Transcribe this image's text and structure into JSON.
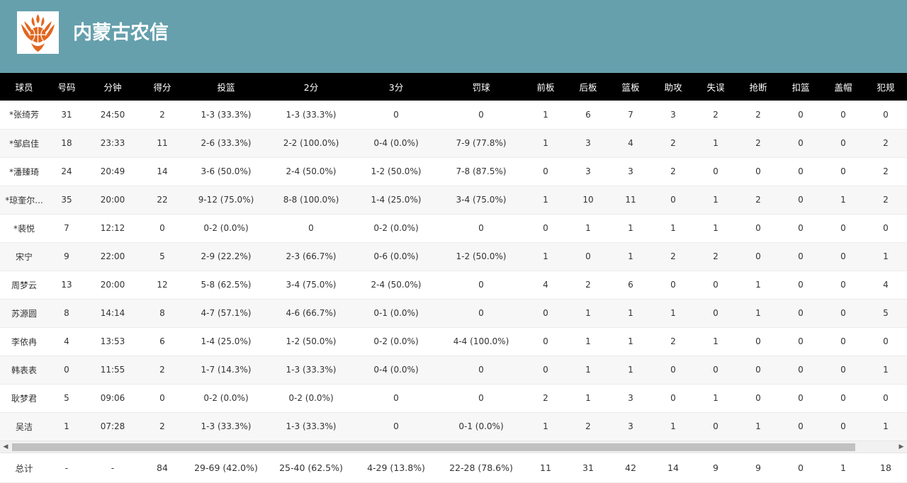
{
  "team": {
    "name": "内蒙古农信",
    "logo_icon": "phoenix-basketball-logo-icon",
    "header_color": "#66a0ad",
    "logo_color": "#e2661f"
  },
  "table": {
    "headers": [
      "球员",
      "号码",
      "分钟",
      "得分",
      "投篮",
      "2分",
      "3分",
      "罚球",
      "前板",
      "后板",
      "篮板",
      "助攻",
      "失误",
      "抢断",
      "扣篮",
      "盖帽",
      "犯规"
    ],
    "rows": [
      [
        "*张绮芳",
        "31",
        "24:50",
        "2",
        "1-3 (33.3%)",
        "1-3 (33.3%)",
        "0",
        "0",
        "1",
        "6",
        "7",
        "3",
        "2",
        "2",
        "0",
        "0",
        "0"
      ],
      [
        "*邹启佳",
        "18",
        "23:33",
        "11",
        "2-6 (33.3%)",
        "2-2 (100.0%)",
        "0-4 (0.0%)",
        "7-9 (77.8%)",
        "1",
        "3",
        "4",
        "2",
        "1",
        "2",
        "0",
        "0",
        "2"
      ],
      [
        "*潘臻琦",
        "24",
        "20:49",
        "14",
        "3-6 (50.0%)",
        "2-4 (50.0%)",
        "1-2 (50.0%)",
        "7-8 (87.5%)",
        "0",
        "3",
        "3",
        "2",
        "0",
        "0",
        "0",
        "0",
        "2"
      ],
      [
        "*琼奎尔...",
        "35",
        "20:00",
        "22",
        "9-12 (75.0%)",
        "8-8 (100.0%)",
        "1-4 (25.0%)",
        "3-4 (75.0%)",
        "1",
        "10",
        "11",
        "0",
        "1",
        "2",
        "0",
        "1",
        "2"
      ],
      [
        "*裴悦",
        "7",
        "12:12",
        "0",
        "0-2 (0.0%)",
        "0",
        "0-2 (0.0%)",
        "0",
        "0",
        "1",
        "1",
        "1",
        "1",
        "0",
        "0",
        "0",
        "0"
      ],
      [
        "宋宁",
        "9",
        "22:00",
        "5",
        "2-9 (22.2%)",
        "2-3 (66.7%)",
        "0-6 (0.0%)",
        "1-2 (50.0%)",
        "1",
        "0",
        "1",
        "2",
        "2",
        "0",
        "0",
        "0",
        "1"
      ],
      [
        "周梦云",
        "13",
        "20:00",
        "12",
        "5-8 (62.5%)",
        "3-4 (75.0%)",
        "2-4 (50.0%)",
        "0",
        "4",
        "2",
        "6",
        "0",
        "0",
        "1",
        "0",
        "0",
        "4"
      ],
      [
        "苏源圆",
        "8",
        "14:14",
        "8",
        "4-7 (57.1%)",
        "4-6 (66.7%)",
        "0-1 (0.0%)",
        "0",
        "0",
        "1",
        "1",
        "1",
        "0",
        "1",
        "0",
        "0",
        "5"
      ],
      [
        "李依冉",
        "4",
        "13:53",
        "6",
        "1-4 (25.0%)",
        "1-2 (50.0%)",
        "0-2 (0.0%)",
        "4-4 (100.0%)",
        "0",
        "1",
        "1",
        "2",
        "1",
        "0",
        "0",
        "0",
        "0"
      ],
      [
        "韩表表",
        "0",
        "11:55",
        "2",
        "1-7 (14.3%)",
        "1-3 (33.3%)",
        "0-4 (0.0%)",
        "0",
        "0",
        "1",
        "1",
        "0",
        "0",
        "0",
        "0",
        "0",
        "1"
      ],
      [
        "耿梦君",
        "5",
        "09:06",
        "0",
        "0-2 (0.0%)",
        "0-2 (0.0%)",
        "0",
        "0",
        "2",
        "1",
        "3",
        "0",
        "1",
        "0",
        "0",
        "0",
        "0"
      ],
      [
        "吴洁",
        "1",
        "07:28",
        "2",
        "1-3 (33.3%)",
        "1-3 (33.3%)",
        "0",
        "0-1 (0.0%)",
        "1",
        "2",
        "3",
        "1",
        "0",
        "1",
        "0",
        "0",
        "1"
      ]
    ],
    "totals": [
      "总计",
      "-",
      "-",
      "84",
      "29-69 (42.0%)",
      "25-40 (62.5%)",
      "4-29 (13.8%)",
      "22-28 (78.6%)",
      "11",
      "31",
      "42",
      "14",
      "9",
      "9",
      "0",
      "1",
      "18"
    ]
  },
  "scrollbar": {
    "left_arrow_icon": "scroll-left-arrow-icon",
    "right_arrow_icon": "scroll-right-arrow-icon"
  }
}
